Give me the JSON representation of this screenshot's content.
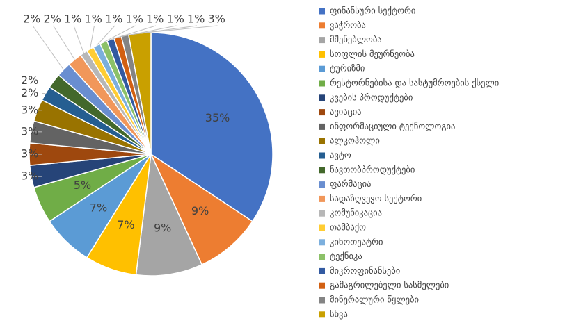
{
  "chart_data": {
    "type": "pie",
    "categories": [
      "ფინანსური სექტორი",
      "ვაჭრობა",
      "მშენებლობა",
      "სოფლის მეურნეობა",
      "ტურიზმი",
      "რესტორნებისა და სასტუმროების ქსელი",
      "კვების პროდუქტები",
      "ავიაცია",
      "ინფორმაციული ტექნოლოგია",
      "ალკოჰოლი",
      "ავტო",
      "ნავთობპროდუქტები",
      "ფარმაცია",
      "სადაზღვევო სექტორი",
      "კომუნიკაცია",
      "თამბაქო",
      "კინოთეატრი",
      "ტექნიკა",
      "მიკროფინანსები",
      "გამაგრილებელი სასმელები",
      "მინერალური წყლები",
      "სხვა"
    ],
    "values": [
      35,
      9,
      9,
      7,
      7,
      5,
      3,
      3,
      3,
      3,
      2,
      2,
      2,
      2,
      1,
      1,
      1,
      1,
      1,
      1,
      1,
      3
    ],
    "value_labels": [
      "35%",
      "9%",
      "9%",
      "7%",
      "7%",
      "5%",
      "3%",
      "3%",
      "3%",
      "3%",
      "2%",
      "2%",
      "2%",
      "2%",
      "1%",
      "1%",
      "1%",
      "1%",
      "1%",
      "1%",
      "1%",
      "3%"
    ],
    "colors": [
      "#4472c4",
      "#ed7d31",
      "#a5a5a5",
      "#ffc000",
      "#5b9bd5",
      "#70ad47",
      "#264478",
      "#9e480e",
      "#636363",
      "#997300",
      "#255e91",
      "#43682b",
      "#698ed0",
      "#f1975a",
      "#b7b7b7",
      "#ffcd33",
      "#7cafdd",
      "#8cc168",
      "#335aa1",
      "#d26012",
      "#848484",
      "#c9a000"
    ]
  }
}
